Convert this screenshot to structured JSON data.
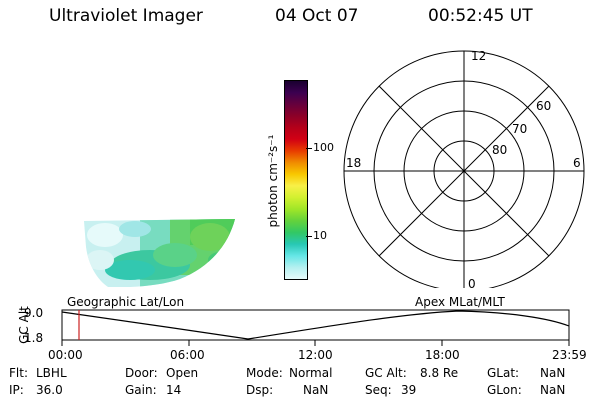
{
  "header": {
    "instrument": "Ultraviolet Imager",
    "date": "04 Oct 07",
    "time": "00:52:45 UT"
  },
  "colorbar": {
    "unit_label": "photon cm⁻²s⁻¹",
    "ticks": [
      "100",
      "10"
    ],
    "colors": [
      "#1a0030",
      "#3c0050",
      "#66003c",
      "#8c0028",
      "#b4001a",
      "#d20014",
      "#e83c00",
      "#f08c00",
      "#f8c800",
      "#f8f048",
      "#d2f030",
      "#a0e628",
      "#64d23c",
      "#32c864",
      "#28c8b4",
      "#64e6e6",
      "#b4f0f0",
      "#e6fafa"
    ]
  },
  "polar_plot": {
    "mlt_labels": [
      "12",
      "18",
      "6",
      "0"
    ],
    "lat_labels": [
      "60",
      "70",
      "80"
    ]
  },
  "lower_plot": {
    "left_title": "Geographic Lat/Lon",
    "right_title": "Apex MLat/MLT",
    "y_axis_label": "GC Alt",
    "y_ticks": [
      "9.0",
      "1.8"
    ],
    "x_ticks": [
      "00:00",
      "06:00",
      "12:00",
      "18:00",
      "23:59"
    ],
    "cursor_color": "#cc2222"
  },
  "status": {
    "flt_label": "Flt:",
    "flt_value": "LBHL",
    "door_label": "Door:",
    "door_value": "Open",
    "mode_label": "Mode:",
    "mode_value": "Normal",
    "gcalt_label": "GC Alt:",
    "gcalt_value": "8.8 Re",
    "glat_label": "GLat:",
    "glat_value": "NaN",
    "ip_label": "IP:",
    "ip_value": "36.0",
    "gain_label": "Gain:",
    "gain_value": "14",
    "dsp_label": "Dsp:",
    "dsp_value": "NaN",
    "seq_label": "Seq:",
    "seq_value": "39",
    "glon_label": "GLon:",
    "glon_value": "NaN"
  }
}
